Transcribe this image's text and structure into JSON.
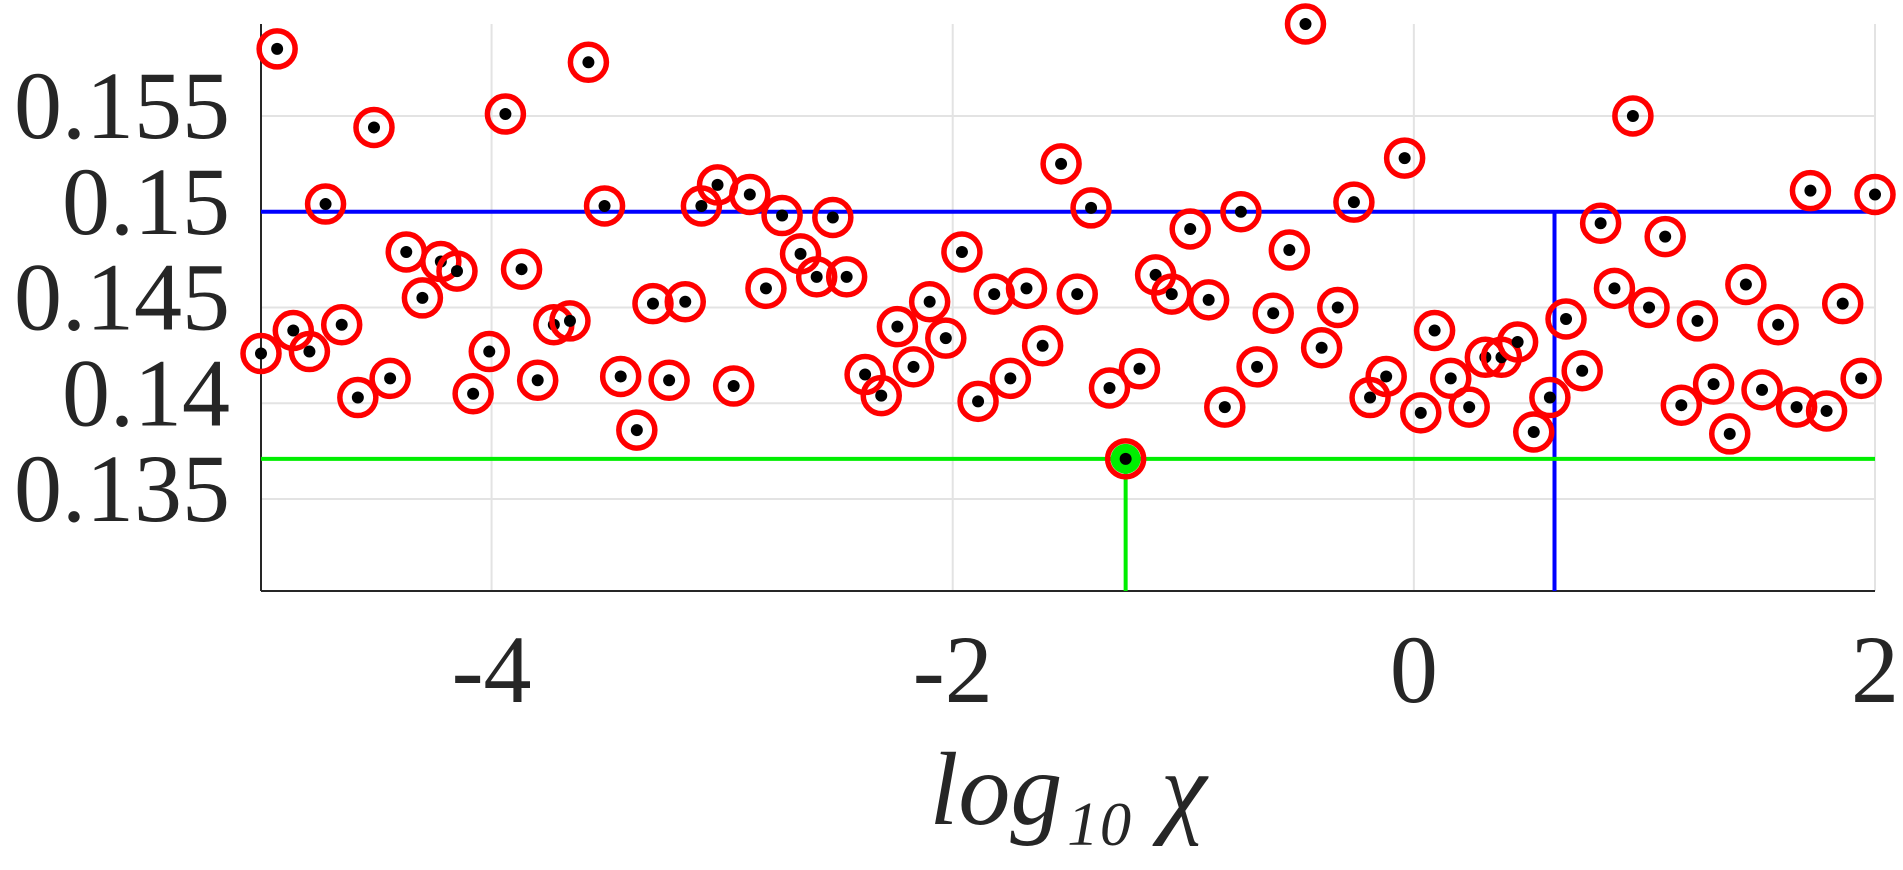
{
  "chart_data": {
    "type": "scatter",
    "xlabel": "log₁₀ χ",
    "xlim": [
      -5,
      2
    ],
    "ylim": [
      0.1302,
      0.1598
    ],
    "xticks": [
      -4,
      -2,
      0,
      2
    ],
    "yticks": [
      0.135,
      0.14,
      0.145,
      0.15,
      0.155
    ],
    "grid": true,
    "series": [
      {
        "color": "#ff0000",
        "x": [
          -5.0,
          -4.93,
          -4.86,
          -4.79,
          -4.72,
          -4.65,
          -4.58,
          -4.51,
          -4.44,
          -4.37,
          -4.3,
          -4.22,
          -4.15,
          -4.08,
          -4.01,
          -3.94,
          -3.87,
          -3.8,
          -3.73,
          -3.66,
          -3.58,
          -3.51,
          -3.44,
          -3.37,
          -3.3,
          -3.23,
          -3.16,
          -3.09,
          -3.02,
          -2.95,
          -2.88,
          -2.81,
          -2.74,
          -2.66,
          -2.59,
          -2.52,
          -2.46,
          -2.38,
          -2.31,
          -2.24,
          -2.17,
          -2.1,
          -2.03,
          -1.96,
          -1.89,
          -1.82,
          -1.75,
          -1.68,
          -1.61,
          -1.53,
          -1.46,
          -1.4,
          -1.32,
          -1.25,
          -1.19,
          -1.12,
          -1.05,
          -0.97,
          -0.89,
          -0.82,
          -0.75,
          -0.68,
          -0.61,
          -0.54,
          -0.47,
          -0.4,
          -0.33,
          -0.26,
          -0.19,
          -0.12,
          -0.04,
          0.03,
          0.09,
          0.16,
          0.24,
          0.31,
          0.38,
          0.45,
          0.52,
          0.59,
          0.66,
          0.73,
          0.81,
          0.87,
          0.95,
          1.02,
          1.09,
          1.16,
          1.23,
          1.3,
          1.37,
          1.44,
          1.51,
          1.58,
          1.66,
          1.72,
          1.79,
          1.86,
          1.94,
          2.0
        ],
        "values": [
          0.1426,
          0.1585,
          0.1438,
          0.1427,
          0.1504,
          0.1441,
          0.1403,
          0.1544,
          0.1413,
          0.1479,
          0.1455,
          0.1474,
          0.1469,
          0.1405,
          0.1427,
          0.1551,
          0.147,
          0.1412,
          0.1441,
          0.1443,
          0.1578,
          0.1503,
          0.1414,
          0.1386,
          0.1452,
          0.1412,
          0.1453,
          0.1503,
          0.1514,
          0.1409,
          0.1509,
          0.146,
          0.1498,
          0.1478,
          0.1466,
          0.1497,
          0.1466,
          0.1415,
          0.1404,
          0.144,
          0.1419,
          0.1453,
          0.1434,
          0.1479,
          0.1401,
          0.1457,
          0.1413,
          0.146,
          0.143,
          0.1525,
          0.1457,
          0.1502,
          0.1408,
          0.1371,
          0.1418,
          0.1467,
          0.1457,
          0.1491,
          0.1454,
          0.1398,
          0.15,
          0.1419,
          0.1447,
          0.148,
          0.1598,
          0.1429,
          0.145,
          0.1505,
          0.1403,
          0.1414,
          0.1528,
          0.1395,
          0.1438,
          0.1413,
          0.1398,
          0.1424,
          0.1424,
          0.1432,
          0.1385,
          0.1403,
          0.1444,
          0.1417,
          0.1494,
          0.146,
          0.155,
          0.145,
          0.1487,
          0.1399,
          0.1443,
          0.141,
          0.1384,
          0.1462,
          0.1407,
          0.1441,
          0.1398,
          0.1511,
          0.1396,
          0.1452,
          0.1413,
          0.1509
        ]
      }
    ],
    "markers": [
      {
        "x": 0.61,
        "y": 0.15,
        "color": "#0000ff",
        "dot": false
      },
      {
        "x": -1.25,
        "y": 0.1371,
        "color": "#00ee00",
        "dot": true
      }
    ]
  }
}
